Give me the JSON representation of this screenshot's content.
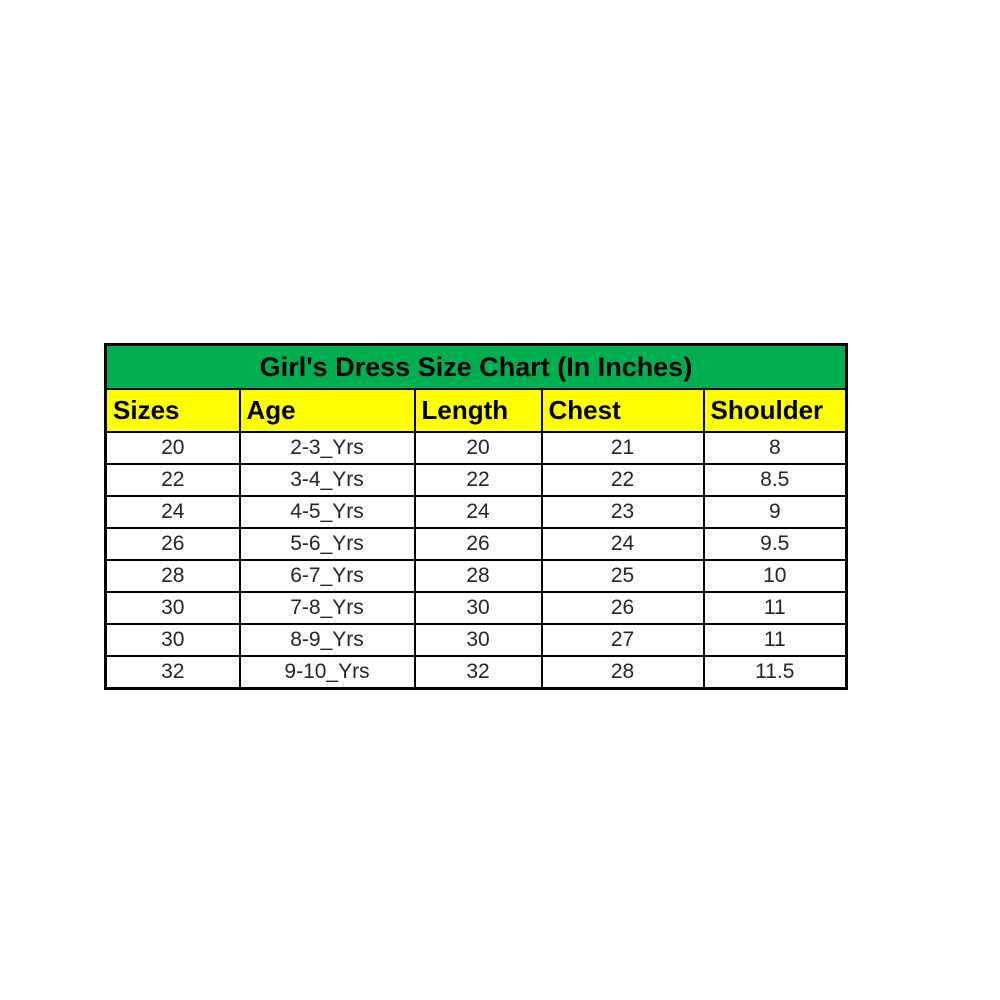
{
  "size_chart": {
    "title": "Girl's Dress Size Chart (In Inches)",
    "columns": [
      "Sizes",
      "Age",
      "Length",
      "Chest",
      "Shoulder"
    ],
    "rows": [
      [
        "20",
        "2-3_Yrs",
        "20",
        "21",
        "8"
      ],
      [
        "22",
        "3-4_Yrs",
        "22",
        "22",
        "8.5"
      ],
      [
        "24",
        "4-5_Yrs",
        "24",
        "23",
        "9"
      ],
      [
        "26",
        "5-6_Yrs",
        "26",
        "24",
        "9.5"
      ],
      [
        "28",
        "6-7_Yrs",
        "28",
        "25",
        "10"
      ],
      [
        "30",
        "7-8_Yrs",
        "30",
        "26",
        "11"
      ],
      [
        "30",
        "8-9_Yrs",
        "30",
        "27",
        "11"
      ],
      [
        "32",
        "9-10_Yrs",
        "32",
        "28",
        "11.5"
      ]
    ],
    "colors": {
      "title_bg": "#00B050",
      "header_bg": "#FFFF00",
      "border": "#000000",
      "text": "#262626",
      "cell_bg": "#FDFDFD",
      "page_bg": "#FFFFFF"
    }
  },
  "chart_data": {
    "type": "table",
    "title": "Girl's Dress Size Chart (In Inches)",
    "columns": [
      "Sizes",
      "Age",
      "Length",
      "Chest",
      "Shoulder"
    ],
    "rows": [
      [
        "20",
        "2-3_Yrs",
        "20",
        "21",
        "8"
      ],
      [
        "22",
        "3-4_Yrs",
        "22",
        "22",
        "8.5"
      ],
      [
        "24",
        "4-5_Yrs",
        "24",
        "23",
        "9"
      ],
      [
        "26",
        "5-6_Yrs",
        "26",
        "24",
        "9.5"
      ],
      [
        "28",
        "6-7_Yrs",
        "28",
        "25",
        "10"
      ],
      [
        "30",
        "7-8_Yrs",
        "30",
        "26",
        "11"
      ],
      [
        "30",
        "8-9_Yrs",
        "30",
        "27",
        "11"
      ],
      [
        "32",
        "9-10_Yrs",
        "32",
        "28",
        "11.5"
      ]
    ],
    "units": "inches"
  }
}
